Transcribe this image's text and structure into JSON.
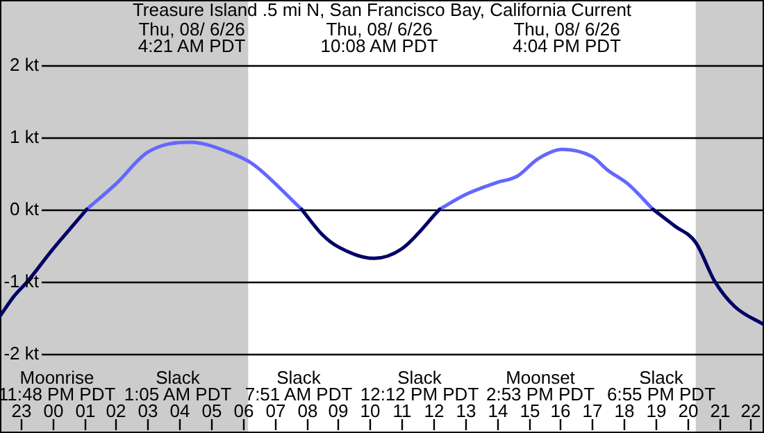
{
  "chart_data": {
    "type": "line",
    "title": "Treasure Island .5 mi N, San Francisco Bay, California Current",
    "x": [
      "--08-05T22:21",
      "--08-05T22:48",
      "--08-05T23:13",
      "--08-06T00:00",
      "--08-06T00:30",
      "--08-06T01:05",
      "--08-06T02:00",
      "--08-06T03:00",
      "--08-06T04:21",
      "--08-06T05:30",
      "--08-06T06:18",
      "--08-06T07:51",
      "--08-06T08:30",
      "--08-06T09:00",
      "--08-06T10:08",
      "--08-06T11:00",
      "--08-06T12:12",
      "--08-06T13:00",
      "--08-06T14:00",
      "--08-06T14:39",
      "--08-06T15:18",
      "--08-06T16:04",
      "--08-06T17:00",
      "--08-06T17:30",
      "--08-06T18:08",
      "--08-06T18:55",
      "--08-06T19:36",
      "--08-06T20:16",
      "--08-06T20:52",
      "--08-06T21:30",
      "--08-06T22:25"
    ],
    "series": [
      {
        "color": "#000066",
        "values": [
          -1.48,
          -1.2,
          -1.0,
          -0.56,
          -0.3,
          0,
          null,
          null,
          null,
          null,
          null,
          0,
          -0.35,
          -0.52,
          -0.68,
          -0.55,
          0,
          null,
          null,
          null,
          null,
          null,
          null,
          null,
          null,
          0,
          -0.23,
          -0.46,
          -1.0,
          -1.35,
          -1.6
        ]
      },
      {
        "color": "#6666ff",
        "values": [
          null,
          null,
          null,
          null,
          null,
          0,
          0.35,
          0.79,
          0.93,
          0.8,
          0.63,
          0,
          null,
          null,
          null,
          null,
          0,
          0.2,
          0.37,
          0.46,
          0.7,
          0.83,
          0.73,
          0.54,
          0.35,
          0,
          null,
          null,
          null,
          null,
          null
        ]
      }
    ],
    "xlim": [
      "--08-05T22:21",
      "--08-06T22:25"
    ],
    "xticks": [
      {
        "value": "--08-05T23:00",
        "label": "23"
      },
      {
        "value": "--08-06T00:00",
        "label": "00"
      },
      {
        "value": "--08-06T01:00",
        "label": "01"
      },
      {
        "value": "--08-06T02:00",
        "label": "02"
      },
      {
        "value": "--08-06T03:00",
        "label": "03"
      },
      {
        "value": "--08-06T04:00",
        "label": "04"
      },
      {
        "value": "--08-06T05:00",
        "label": "05"
      },
      {
        "value": "--08-06T06:00",
        "label": "06"
      },
      {
        "value": "--08-06T07:00",
        "label": "07"
      },
      {
        "value": "--08-06T08:00",
        "label": "08"
      },
      {
        "value": "--08-06T09:00",
        "label": "09"
      },
      {
        "value": "--08-06T10:00",
        "label": "10"
      },
      {
        "value": "--08-06T11:00",
        "label": "11"
      },
      {
        "value": "--08-06T12:00",
        "label": "12"
      },
      {
        "value": "--08-06T13:00",
        "label": "13"
      },
      {
        "value": "--08-06T14:00",
        "label": "14"
      },
      {
        "value": "--08-06T15:00",
        "label": "15"
      },
      {
        "value": "--08-06T16:00",
        "label": "16"
      },
      {
        "value": "--08-06T17:00",
        "label": "17"
      },
      {
        "value": "--08-06T18:00",
        "label": "18"
      },
      {
        "value": "--08-06T19:00",
        "label": "19"
      },
      {
        "value": "--08-06T20:00",
        "label": "20"
      },
      {
        "value": "--08-06T21:00",
        "label": "21"
      },
      {
        "value": "--08-06T22:00",
        "label": "22"
      }
    ],
    "ylim": [
      -3.1,
      2.9
    ],
    "yticks": [
      {
        "value": -2,
        "label": "-2 kt"
      },
      {
        "value": -1,
        "label": "-1 kt"
      },
      {
        "value": 0,
        "label": "0 kt"
      },
      {
        "value": 1,
        "label": "1 kt"
      },
      {
        "value": 2,
        "label": "2 kt"
      }
    ],
    "grid": "y",
    "bands": [
      {
        "axis": "x",
        "from": "--08-05T22:21",
        "to": "--08-06T06:10",
        "color": "#cccccc"
      },
      {
        "axis": "x",
        "from": "--08-06T20:16",
        "to": "--08-06T22:25",
        "color": "#cccccc"
      }
    ],
    "annotations": [
      "Thu, 08/ 6/26\n4:21 AM PDT",
      "Thu, 08/ 6/26\n10:08 AM PDT",
      "Thu, 08/ 6/26\n4:04 PM PDT",
      "Moonrise\n11:48 PM PDT",
      "Slack\n1:05 AM PDT",
      "Slack\n7:51 AM PDT",
      "Slack\n12:12 PM PDT",
      "Moonset\n2:53 PM PDT",
      "Slack\n6:55 PM PDT"
    ]
  }
}
